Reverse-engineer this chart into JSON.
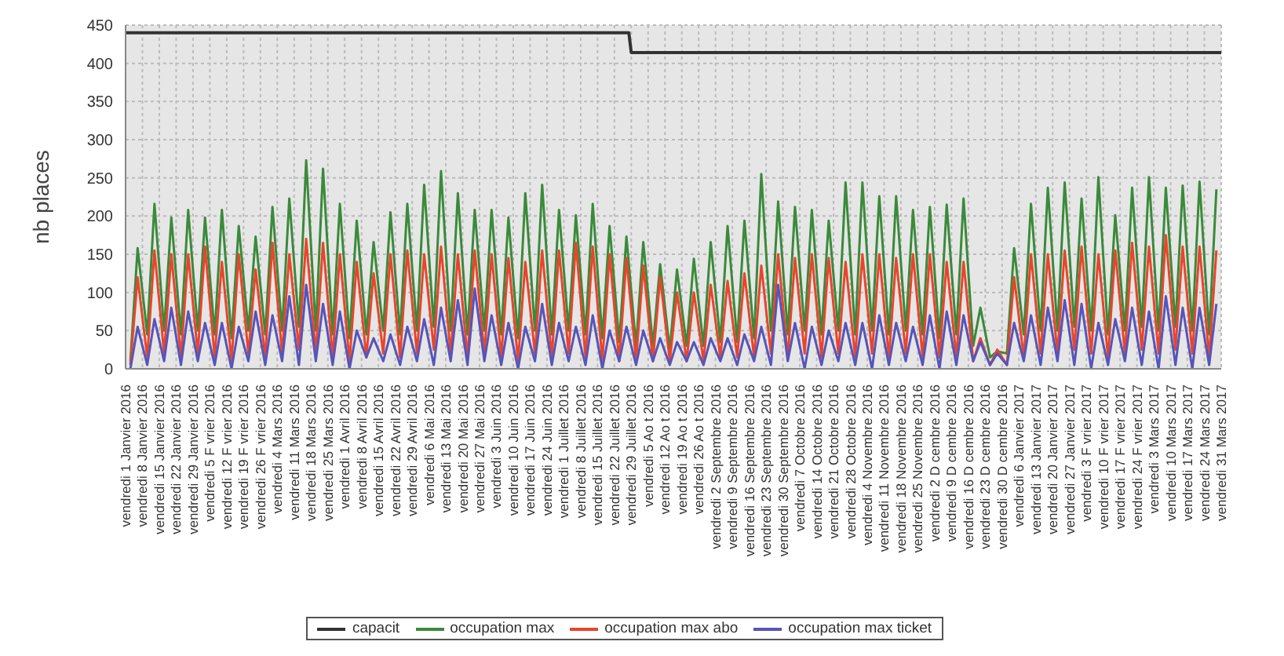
{
  "chart_data": {
    "type": "line",
    "ylabel": "nb places",
    "x": [
      "2016-01-03",
      "2016-01-06",
      "2016-01-10",
      "2016-01-13",
      "2016-01-17",
      "2016-01-20",
      "2016-01-24",
      "2016-01-27",
      "2016-01-31",
      "2016-02-03",
      "2016-02-07",
      "2016-02-10",
      "2016-02-14",
      "2016-02-17",
      "2016-02-21",
      "2016-02-24",
      "2016-02-28",
      "2016-03-02",
      "2016-03-06",
      "2016-03-09",
      "2016-03-13",
      "2016-03-16",
      "2016-03-20",
      "2016-03-23",
      "2016-03-27",
      "2016-03-30",
      "2016-04-03",
      "2016-04-06",
      "2016-04-10",
      "2016-04-13",
      "2016-04-17",
      "2016-04-20",
      "2016-04-24",
      "2016-04-27",
      "2016-05-01",
      "2016-05-04",
      "2016-05-08",
      "2016-05-11",
      "2016-05-15",
      "2016-05-18",
      "2016-05-22",
      "2016-05-25",
      "2016-05-29",
      "2016-06-01",
      "2016-06-05",
      "2016-06-08",
      "2016-06-12",
      "2016-06-15",
      "2016-06-19",
      "2016-06-22",
      "2016-06-26",
      "2016-06-29",
      "2016-07-03",
      "2016-07-06",
      "2016-07-10",
      "2016-07-13",
      "2016-07-17",
      "2016-07-20",
      "2016-07-24",
      "2016-07-27",
      "2016-07-31",
      "2016-08-03",
      "2016-08-07",
      "2016-08-10",
      "2016-08-14",
      "2016-08-17",
      "2016-08-21",
      "2016-08-24",
      "2016-08-28",
      "2016-08-31",
      "2016-09-04",
      "2016-09-07",
      "2016-09-11",
      "2016-09-14",
      "2016-09-18",
      "2016-09-21",
      "2016-09-25",
      "2016-09-28",
      "2016-10-02",
      "2016-10-05",
      "2016-10-09",
      "2016-10-12",
      "2016-10-16",
      "2016-10-19",
      "2016-10-23",
      "2016-10-26",
      "2016-10-30",
      "2016-11-02",
      "2016-11-06",
      "2016-11-09",
      "2016-11-13",
      "2016-11-16",
      "2016-11-20",
      "2016-11-23",
      "2016-11-27",
      "2016-11-30",
      "2016-12-04",
      "2016-12-07",
      "2016-12-11",
      "2016-12-14",
      "2016-12-18",
      "2016-12-21",
      "2016-12-25",
      "2016-12-28",
      "2017-01-01",
      "2017-01-04",
      "2017-01-08",
      "2017-01-11",
      "2017-01-15",
      "2017-01-18",
      "2017-01-22",
      "2017-01-25",
      "2017-01-29",
      "2017-02-01",
      "2017-02-05",
      "2017-02-08",
      "2017-02-12",
      "2017-02-15",
      "2017-02-19",
      "2017-02-22",
      "2017-02-26",
      "2017-03-01",
      "2017-03-05",
      "2017-03-08",
      "2017-03-12",
      "2017-03-15",
      "2017-03-19",
      "2017-03-22",
      "2017-03-26",
      "2017-03-29"
    ],
    "series": [
      {
        "name": "capacit",
        "color": "#333333",
        "x": [
          "2016-01-01",
          "2016-07-28",
          "2016-07-29",
          "2017-03-31"
        ],
        "values": [
          440,
          440,
          414,
          414
        ]
      },
      {
        "name": "occupation max",
        "color": "#3a8a3a",
        "values": [
          10,
          158,
          45,
          216,
          50,
          198,
          45,
          208,
          50,
          198,
          45,
          208,
          40,
          187,
          50,
          173,
          45,
          212,
          50,
          223,
          55,
          273,
          50,
          262,
          45,
          216,
          40,
          194,
          45,
          166,
          50,
          205,
          45,
          216,
          50,
          241,
          55,
          259,
          50,
          230,
          45,
          208,
          50,
          208,
          45,
          198,
          40,
          230,
          50,
          241,
          45,
          208,
          50,
          201,
          45,
          216,
          40,
          187,
          35,
          173,
          30,
          166,
          30,
          137,
          25,
          130,
          30,
          144,
          30,
          166,
          35,
          187,
          35,
          194,
          40,
          255,
          50,
          219,
          45,
          212,
          50,
          208,
          45,
          194,
          50,
          244,
          45,
          244,
          50,
          226,
          45,
          226,
          50,
          208,
          45,
          212,
          40,
          215,
          45,
          223,
          30,
          80,
          15,
          23,
          20,
          158,
          45,
          216,
          50,
          237,
          50,
          244,
          55,
          223,
          50,
          251,
          45,
          201,
          50,
          237,
          55,
          251,
          50,
          237,
          55,
          240,
          50,
          245,
          45,
          235
        ]
      },
      {
        "name": "occupation max abo",
        "color": "#e8452c",
        "values": [
          5,
          120,
          15,
          155,
          20,
          150,
          15,
          150,
          20,
          160,
          15,
          140,
          10,
          150,
          20,
          130,
          15,
          165,
          20,
          150,
          25,
          170,
          20,
          165,
          15,
          150,
          10,
          140,
          15,
          125,
          20,
          150,
          15,
          155,
          20,
          150,
          25,
          160,
          20,
          150,
          15,
          155,
          20,
          150,
          15,
          145,
          10,
          140,
          20,
          155,
          15,
          155,
          20,
          165,
          15,
          160,
          10,
          150,
          10,
          145,
          10,
          135,
          10,
          120,
          10,
          100,
          10,
          100,
          10,
          110,
          15,
          115,
          15,
          125,
          15,
          135,
          20,
          150,
          15,
          145,
          20,
          150,
          15,
          145,
          20,
          140,
          15,
          150,
          20,
          150,
          15,
          145,
          20,
          150,
          15,
          150,
          15,
          140,
          15,
          140,
          10,
          40,
          5,
          25,
          5,
          120,
          15,
          150,
          20,
          150,
          20,
          155,
          25,
          160,
          20,
          150,
          15,
          155,
          20,
          165,
          25,
          160,
          20,
          175,
          25,
          160,
          20,
          160,
          15,
          155
        ]
      },
      {
        "name": "occupation max ticket",
        "color": "#5555bb",
        "values": [
          0,
          55,
          5,
          65,
          10,
          80,
          5,
          75,
          10,
          60,
          5,
          60,
          0,
          55,
          10,
          75,
          5,
          70,
          10,
          95,
          5,
          110,
          10,
          85,
          5,
          75,
          0,
          50,
          15,
          40,
          10,
          45,
          5,
          55,
          10,
          65,
          5,
          80,
          10,
          90,
          5,
          105,
          10,
          70,
          5,
          60,
          0,
          55,
          10,
          85,
          5,
          60,
          10,
          55,
          5,
          70,
          0,
          50,
          10,
          55,
          5,
          50,
          10,
          40,
          5,
          35,
          10,
          35,
          5,
          40,
          10,
          40,
          5,
          45,
          10,
          55,
          5,
          110,
          10,
          60,
          0,
          55,
          5,
          50,
          10,
          60,
          5,
          60,
          0,
          70,
          5,
          60,
          10,
          55,
          5,
          70,
          0,
          75,
          5,
          70,
          10,
          35,
          5,
          20,
          5,
          60,
          10,
          70,
          5,
          80,
          10,
          90,
          5,
          85,
          0,
          60,
          5,
          65,
          10,
          80,
          5,
          75,
          0,
          95,
          5,
          80,
          0,
          80,
          5,
          85
        ]
      }
    ],
    "xlim": [
      "2016-01-01",
      "2017-03-31"
    ],
    "xticks": [
      {
        "value": "2016-01-01",
        "label": "vendredi 1 Janvier 2016"
      },
      {
        "value": "2016-01-08",
        "label": "vendredi 8 Janvier 2016"
      },
      {
        "value": "2016-01-15",
        "label": "vendredi 15 Janvier 2016"
      },
      {
        "value": "2016-01-22",
        "label": "vendredi 22 Janvier 2016"
      },
      {
        "value": "2016-01-29",
        "label": "vendredi 29 Janvier 2016"
      },
      {
        "value": "2016-02-05",
        "label": "vendredi 5 F vrier 2016"
      },
      {
        "value": "2016-02-12",
        "label": "vendredi 12 F vrier 2016"
      },
      {
        "value": "2016-02-19",
        "label": "vendredi 19 F vrier 2016"
      },
      {
        "value": "2016-02-26",
        "label": "vendredi 26 F vrier 2016"
      },
      {
        "value": "2016-03-04",
        "label": "vendredi 4 Mars 2016"
      },
      {
        "value": "2016-03-11",
        "label": "vendredi 11 Mars 2016"
      },
      {
        "value": "2016-03-18",
        "label": "vendredi 18 Mars 2016"
      },
      {
        "value": "2016-03-25",
        "label": "vendredi 25 Mars 2016"
      },
      {
        "value": "2016-04-01",
        "label": "vendredi 1 Avril 2016"
      },
      {
        "value": "2016-04-08",
        "label": "vendredi 8 Avril 2016"
      },
      {
        "value": "2016-04-15",
        "label": "vendredi 15 Avril 2016"
      },
      {
        "value": "2016-04-22",
        "label": "vendredi 22 Avril 2016"
      },
      {
        "value": "2016-04-29",
        "label": "vendredi 29 Avril 2016"
      },
      {
        "value": "2016-05-06",
        "label": "vendredi 6 Mai 2016"
      },
      {
        "value": "2016-05-13",
        "label": "vendredi 13 Mai 2016"
      },
      {
        "value": "2016-05-20",
        "label": "vendredi 20 Mai 2016"
      },
      {
        "value": "2016-05-27",
        "label": "vendredi 27 Mai 2016"
      },
      {
        "value": "2016-06-03",
        "label": "vendredi 3 Juin 2016"
      },
      {
        "value": "2016-06-10",
        "label": "vendredi 10 Juin 2016"
      },
      {
        "value": "2016-06-17",
        "label": "vendredi 17 Juin 2016"
      },
      {
        "value": "2016-06-24",
        "label": "vendredi 24 Juin 2016"
      },
      {
        "value": "2016-07-01",
        "label": "vendredi 1 Juillet 2016"
      },
      {
        "value": "2016-07-08",
        "label": "vendredi 8 Juillet 2016"
      },
      {
        "value": "2016-07-15",
        "label": "vendredi 15 Juillet 2016"
      },
      {
        "value": "2016-07-22",
        "label": "vendredi 22 Juillet 2016"
      },
      {
        "value": "2016-07-29",
        "label": "vendredi 29 Juillet 2016"
      },
      {
        "value": "2016-08-05",
        "label": "vendredi 5 Ao t 2016"
      },
      {
        "value": "2016-08-12",
        "label": "vendredi 12 Ao t 2016"
      },
      {
        "value": "2016-08-19",
        "label": "vendredi 19 Ao t 2016"
      },
      {
        "value": "2016-08-26",
        "label": "vendredi 26 Ao t 2016"
      },
      {
        "value": "2016-09-02",
        "label": "vendredi 2 Septembre 2016"
      },
      {
        "value": "2016-09-09",
        "label": "vendredi 9 Septembre 2016"
      },
      {
        "value": "2016-09-16",
        "label": "vendredi 16 Septembre 2016"
      },
      {
        "value": "2016-09-23",
        "label": "vendredi 23 Septembre 2016"
      },
      {
        "value": "2016-09-30",
        "label": "vendredi 30 Septembre 2016"
      },
      {
        "value": "2016-10-07",
        "label": "vendredi 7 Octobre 2016"
      },
      {
        "value": "2016-10-14",
        "label": "vendredi 14 Octobre 2016"
      },
      {
        "value": "2016-10-21",
        "label": "vendredi 21 Octobre 2016"
      },
      {
        "value": "2016-10-28",
        "label": "vendredi 28 Octobre 2016"
      },
      {
        "value": "2016-11-04",
        "label": "vendredi 4 Novembre 2016"
      },
      {
        "value": "2016-11-11",
        "label": "vendredi 11 Novembre 2016"
      },
      {
        "value": "2016-11-18",
        "label": "vendredi 18 Novembre 2016"
      },
      {
        "value": "2016-11-25",
        "label": "vendredi 25 Novembre 2016"
      },
      {
        "value": "2016-12-02",
        "label": "vendredi 2 D cembre 2016"
      },
      {
        "value": "2016-12-09",
        "label": "vendredi 9 D cembre 2016"
      },
      {
        "value": "2016-12-16",
        "label": "vendredi 16 D cembre 2016"
      },
      {
        "value": "2016-12-23",
        "label": "vendredi 23 D cembre 2016"
      },
      {
        "value": "2016-12-30",
        "label": "vendredi 30 D cembre 2016"
      },
      {
        "value": "2017-01-06",
        "label": "vendredi 6 Janvier 2017"
      },
      {
        "value": "2017-01-13",
        "label": "vendredi 13 Janvier 2017"
      },
      {
        "value": "2017-01-20",
        "label": "vendredi 20 Janvier 2017"
      },
      {
        "value": "2017-01-27",
        "label": "vendredi 27 Janvier 2017"
      },
      {
        "value": "2017-02-03",
        "label": "vendredi 3 F vrier 2017"
      },
      {
        "value": "2017-02-10",
        "label": "vendredi 10 F vrier 2017"
      },
      {
        "value": "2017-02-17",
        "label": "vendredi 17 F vrier 2017"
      },
      {
        "value": "2017-02-24",
        "label": "vendredi 24 F vrier 2017"
      },
      {
        "value": "2017-03-03",
        "label": "vendredi 3 Mars 2017"
      },
      {
        "value": "2017-03-10",
        "label": "vendredi 10 Mars 2017"
      },
      {
        "value": "2017-03-17",
        "label": "vendredi 17 Mars 2017"
      },
      {
        "value": "2017-03-24",
        "label": "vendredi 24 Mars 2017"
      },
      {
        "value": "2017-03-31",
        "label": "vendredi 31 Mars 2017"
      }
    ],
    "ylim": [
      0,
      450
    ],
    "yticks": [
      0,
      50,
      100,
      150,
      200,
      250,
      300,
      350,
      400,
      450
    ],
    "grid": true,
    "legend": "bottom"
  }
}
